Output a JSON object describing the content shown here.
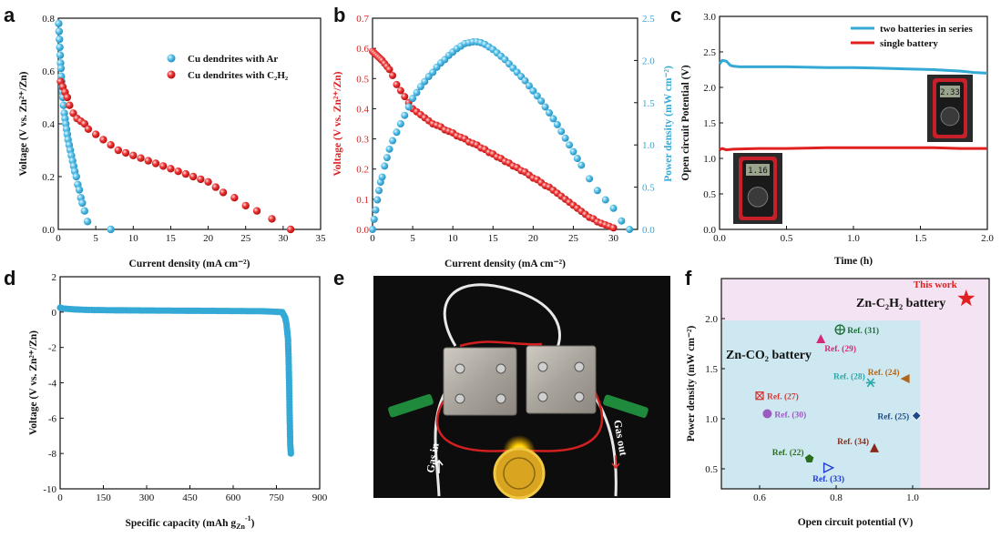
{
  "panels": {
    "a": "a",
    "b": "b",
    "c": "c",
    "d": "d",
    "e": "e",
    "f": "f"
  },
  "chart_data": [
    {
      "id": "a",
      "type": "scatter",
      "xlabel": "Current density (mA cm⁻²)",
      "ylabel": "Voltage (V vs. Zn²⁺/Zn)",
      "xlim": [
        0,
        35
      ],
      "ylim": [
        0,
        0.8
      ],
      "xticks": [
        "0",
        "5",
        "10",
        "15",
        "20",
        "25",
        "30",
        "35"
      ],
      "yticks": [
        "0.0",
        "0.2",
        "0.4",
        "0.6",
        "0.8"
      ],
      "legend_position": "top-right",
      "series": [
        {
          "name": "Cu dendrites with Ar",
          "color": "#35a9d6",
          "x": [
            0.05,
            0.1,
            0.15,
            0.2,
            0.25,
            0.3,
            0.35,
            0.4,
            0.45,
            0.5,
            0.55,
            0.6,
            0.7,
            0.8,
            0.9,
            1.0,
            1.1,
            1.2,
            1.3,
            1.45,
            1.6,
            1.75,
            1.9,
            2.05,
            2.2,
            2.4,
            2.6,
            2.8,
            3.0,
            3.2,
            3.5,
            3.9,
            7.0
          ],
          "y": [
            0.78,
            0.75,
            0.72,
            0.69,
            0.66,
            0.63,
            0.61,
            0.58,
            0.56,
            0.54,
            0.52,
            0.5,
            0.47,
            0.44,
            0.42,
            0.4,
            0.38,
            0.36,
            0.34,
            0.32,
            0.3,
            0.28,
            0.26,
            0.24,
            0.22,
            0.2,
            0.17,
            0.15,
            0.12,
            0.1,
            0.07,
            0.03,
            0.0
          ]
        },
        {
          "name": "Cu dendrites with C₂H₂",
          "color": "#e02020",
          "x": [
            0.3,
            0.6,
            0.9,
            1.2,
            1.5,
            2.0,
            2.5,
            3.0,
            3.5,
            4.0,
            5.0,
            6.0,
            7.0,
            8.0,
            9.0,
            10.0,
            11.0,
            12.0,
            13.0,
            14.0,
            15.0,
            16.0,
            17.0,
            18.0,
            19.0,
            20.0,
            21.0,
            22.0,
            23.5,
            25.0,
            26.5,
            28.5,
            31.0
          ],
          "y": [
            0.56,
            0.54,
            0.52,
            0.5,
            0.47,
            0.44,
            0.42,
            0.41,
            0.4,
            0.38,
            0.36,
            0.34,
            0.32,
            0.3,
            0.29,
            0.28,
            0.27,
            0.26,
            0.25,
            0.24,
            0.23,
            0.22,
            0.21,
            0.2,
            0.19,
            0.18,
            0.16,
            0.14,
            0.12,
            0.09,
            0.07,
            0.04,
            0.0
          ]
        }
      ]
    },
    {
      "id": "b",
      "type": "scatter",
      "xlabel": "Current density (mA cm⁻²)",
      "ylabel": "Voltage (V vs. Zn²⁺/Zn)",
      "y2label": "Power density (mW cm⁻²)",
      "xlim": [
        0,
        33
      ],
      "ylim": [
        0,
        0.7
      ],
      "y2lim": [
        0,
        2.5
      ],
      "xticks": [
        "0",
        "5",
        "10",
        "15",
        "20",
        "25",
        "30"
      ],
      "yticks": [
        "0.0",
        "0.1",
        "0.2",
        "0.3",
        "0.4",
        "0.5",
        "0.6",
        "0.7"
      ],
      "y2ticks": [
        "0.0",
        "0.5",
        "1.0",
        "1.5",
        "2.0",
        "2.5"
      ],
      "voltage": {
        "color": "#e02020",
        "x": [
          0.0,
          0.2,
          0.4,
          0.6,
          0.8,
          1.0,
          1.2,
          1.5,
          1.8,
          2.1,
          2.5,
          3.0,
          3.5,
          4.0,
          4.5,
          5.0,
          5.5,
          6.0,
          6.5,
          7.0,
          7.5,
          8.0,
          8.5,
          9.0,
          9.5,
          10.0,
          10.5,
          11.0,
          11.5,
          12.0,
          12.5,
          13.0,
          13.5,
          14.0,
          14.5,
          15.0,
          15.5,
          16.0,
          16.5,
          17.0,
          17.5,
          18.0,
          18.5,
          19.0,
          19.5,
          20.0,
          20.5,
          21.0,
          21.5,
          22.0,
          22.5,
          23.0,
          23.5,
          24.0,
          24.5,
          25.0,
          25.5,
          26.0,
          26.5,
          27.0,
          27.5,
          28.0,
          28.5,
          29.0,
          29.5,
          30.0
        ],
        "y": [
          0.59,
          0.585,
          0.58,
          0.575,
          0.57,
          0.565,
          0.56,
          0.55,
          0.54,
          0.53,
          0.51,
          0.48,
          0.46,
          0.44,
          0.42,
          0.4,
          0.39,
          0.38,
          0.37,
          0.36,
          0.35,
          0.345,
          0.34,
          0.33,
          0.325,
          0.32,
          0.31,
          0.305,
          0.3,
          0.29,
          0.285,
          0.28,
          0.27,
          0.265,
          0.255,
          0.25,
          0.24,
          0.235,
          0.225,
          0.22,
          0.21,
          0.205,
          0.195,
          0.19,
          0.18,
          0.17,
          0.165,
          0.155,
          0.145,
          0.14,
          0.13,
          0.12,
          0.11,
          0.1,
          0.09,
          0.08,
          0.07,
          0.06,
          0.05,
          0.04,
          0.035,
          0.025,
          0.02,
          0.015,
          0.01,
          0.005
        ]
      },
      "power": {
        "color": "#35a9d6",
        "x": [
          0.0,
          0.2,
          0.4,
          0.6,
          0.8,
          1.0,
          1.2,
          1.5,
          1.8,
          2.1,
          2.5,
          3.0,
          3.5,
          4.0,
          4.5,
          5.0,
          5.5,
          6.0,
          6.5,
          7.0,
          7.5,
          8.0,
          8.5,
          9.0,
          9.5,
          10.0,
          10.5,
          11.0,
          11.5,
          12.0,
          12.5,
          13.0,
          13.5,
          14.0,
          14.5,
          15.0,
          15.5,
          16.0,
          16.5,
          17.0,
          17.5,
          18.0,
          18.5,
          19.0,
          19.5,
          20.0,
          20.5,
          21.0,
          21.5,
          22.0,
          22.5,
          23.0,
          23.5,
          24.0,
          24.5,
          25.0,
          25.5,
          26.0,
          27.0,
          28.0,
          29.0,
          30.0,
          31.0,
          32.0
        ],
        "y": [
          0.0,
          0.12,
          0.23,
          0.35,
          0.46,
          0.56,
          0.62,
          0.75,
          0.85,
          0.95,
          1.05,
          1.15,
          1.25,
          1.35,
          1.45,
          1.55,
          1.62,
          1.69,
          1.75,
          1.81,
          1.86,
          1.92,
          1.97,
          2.01,
          2.06,
          2.1,
          2.14,
          2.17,
          2.2,
          2.21,
          2.22,
          2.22,
          2.21,
          2.19,
          2.16,
          2.13,
          2.09,
          2.05,
          2.01,
          1.96,
          1.91,
          1.86,
          1.81,
          1.76,
          1.7,
          1.64,
          1.58,
          1.52,
          1.45,
          1.38,
          1.31,
          1.24,
          1.16,
          1.08,
          1.0,
          0.92,
          0.84,
          0.76,
          0.6,
          0.46,
          0.35,
          0.25,
          0.1,
          0.0
        ]
      }
    },
    {
      "id": "c",
      "type": "line",
      "xlabel": "Time (h)",
      "ylabel": "Open circuit Potential (V)",
      "xlim": [
        0,
        2.0
      ],
      "ylim": [
        0,
        3.0
      ],
      "xticks": [
        "0.0",
        "0.5",
        "1.0",
        "1.5",
        "2.0"
      ],
      "yticks": [
        "0.0",
        "0.5",
        "1.0",
        "1.5",
        "2.0",
        "2.5",
        "3.0"
      ],
      "legend_position": "top-right",
      "series": [
        {
          "name": "two batteries in series",
          "color": "#35a9d6",
          "x": [
            0.0,
            0.02,
            0.05,
            0.08,
            0.1,
            0.15,
            0.3,
            0.5,
            0.8,
            1.0,
            1.2,
            1.4,
            1.6,
            1.8,
            1.9,
            2.0
          ],
          "y": [
            2.33,
            2.38,
            2.37,
            2.31,
            2.3,
            2.29,
            2.29,
            2.29,
            2.28,
            2.28,
            2.27,
            2.26,
            2.25,
            2.23,
            2.21,
            2.2
          ]
        },
        {
          "name": "single battery",
          "color": "#e02020",
          "x": [
            0.0,
            0.02,
            0.05,
            0.1,
            0.3,
            0.5,
            0.8,
            1.0,
            1.3,
            1.6,
            1.8,
            2.0
          ],
          "y": [
            1.12,
            1.14,
            1.12,
            1.13,
            1.14,
            1.14,
            1.15,
            1.15,
            1.15,
            1.15,
            1.14,
            1.14
          ]
        }
      ],
      "meter_readings": [
        "2.33",
        "1.16"
      ]
    },
    {
      "id": "d",
      "type": "line",
      "xlabel": "Specific capacity (mAh g",
      "xlabel_sub": "Zn",
      "xlabel_sup": "-1",
      "xlabel_end": ")",
      "ylabel": "Voltage (V vs. Zn²⁺/Zn)",
      "xlim": [
        0,
        900
      ],
      "ylim": [
        -10,
        2
      ],
      "xticks": [
        "0",
        "150",
        "300",
        "450",
        "600",
        "750",
        "900"
      ],
      "yticks": [
        "-10",
        "-8",
        "-6",
        "-4",
        "-2",
        "0",
        "2"
      ],
      "series": [
        {
          "color": "#35a9d6",
          "x": [
            0,
            10,
            50,
            100,
            200,
            300,
            400,
            500,
            600,
            700,
            770,
            780,
            785,
            790,
            792,
            794,
            796,
            798,
            800
          ],
          "y": [
            0.25,
            0.2,
            0.15,
            0.12,
            0.1,
            0.09,
            0.08,
            0.07,
            0.06,
            0.05,
            0.0,
            -0.3,
            -0.7,
            -1.5,
            -2.5,
            -4.0,
            -6.0,
            -7.5,
            -8.0
          ]
        }
      ]
    },
    {
      "id": "f",
      "type": "scatter",
      "xlabel": "Open circuit potential (V)",
      "ylabel": "Power density (mW cm⁻²)",
      "xlim": [
        0.5,
        1.2
      ],
      "ylim": [
        0.3,
        2.4
      ],
      "xticks": [
        "0.6",
        "0.8",
        "1.0"
      ],
      "yticks": [
        "0.5",
        "1.0",
        "1.5",
        "2.0"
      ],
      "band_labels": [
        "Zn-C₂H₂ battery",
        "Zn-CO₂ battery"
      ],
      "points": [
        {
          "label": "This work",
          "x": 1.14,
          "y": 2.2,
          "color": "#e02020",
          "marker": "star",
          "label_pos": "above-left"
        },
        {
          "label": "Ref. (31)",
          "x": 0.81,
          "y": 1.89,
          "color": "#1f6e3a",
          "marker": "circle-plus",
          "label_pos": "right"
        },
        {
          "label": "Ref. (29)",
          "x": 0.76,
          "y": 1.8,
          "color": "#d6287a",
          "marker": "triangle",
          "label_pos": "below-right"
        },
        {
          "label": "Ref. (24)",
          "x": 0.98,
          "y": 1.4,
          "color": "#b0671c",
          "marker": "triangle-left",
          "label_pos": "above-left"
        },
        {
          "label": "Ref. (28)",
          "x": 0.89,
          "y": 1.36,
          "color": "#2aa9a9",
          "marker": "asterisk",
          "label_pos": "above-left"
        },
        {
          "label": "Ref. (27)",
          "x": 0.6,
          "y": 1.23,
          "color": "#d43a3a",
          "marker": "square-x",
          "label_pos": "right"
        },
        {
          "label": "Ref. (30)",
          "x": 0.62,
          "y": 1.05,
          "color": "#9a5bbf",
          "marker": "circle",
          "label_pos": "right"
        },
        {
          "label": "Ref. (25)",
          "x": 1.01,
          "y": 1.03,
          "color": "#1e4a8a",
          "marker": "diamond",
          "label_pos": "left"
        },
        {
          "label": "Ref. (34)",
          "x": 0.9,
          "y": 0.71,
          "color": "#8b2a1a",
          "marker": "triangle",
          "label_pos": "above-left"
        },
        {
          "label": "Ref. (22)",
          "x": 0.73,
          "y": 0.6,
          "color": "#2a6e1c",
          "marker": "pentagon",
          "label_pos": "above-left"
        },
        {
          "label": "Ref. (33)",
          "x": 0.78,
          "y": 0.51,
          "color": "#1e3ad4",
          "marker": "triangle-right",
          "label_pos": "below"
        }
      ]
    }
  ],
  "photo_e": {
    "labels": [
      "Gas in",
      "Gas out"
    ]
  }
}
